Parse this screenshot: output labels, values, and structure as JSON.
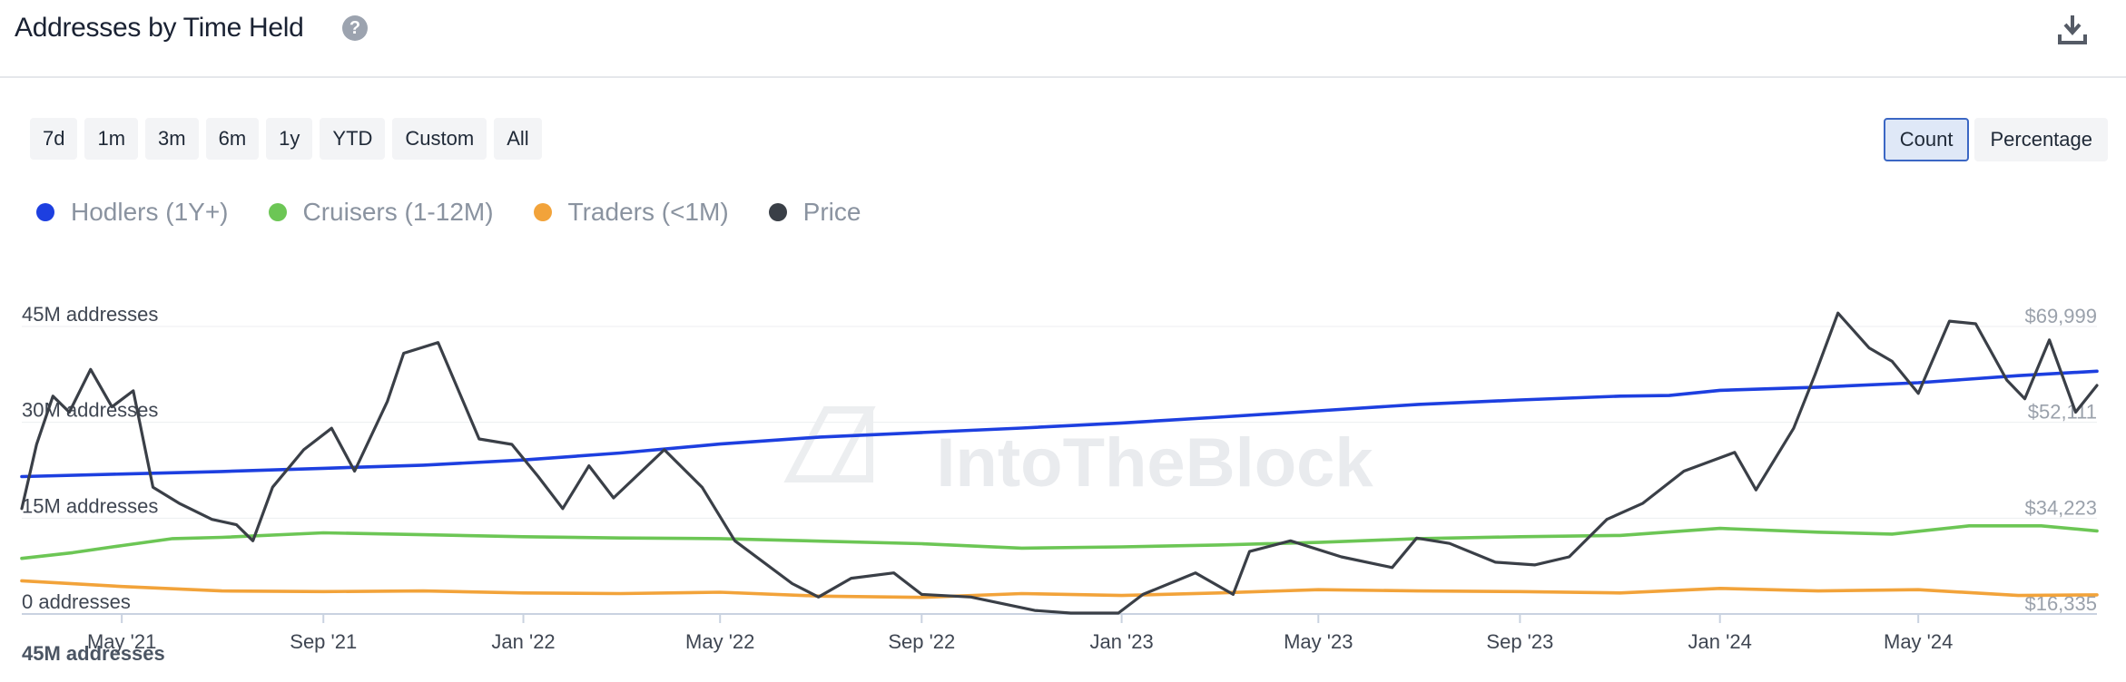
{
  "header": {
    "title": "Addresses by Time Held",
    "help_icon": "question-icon",
    "download_icon": "download-icon"
  },
  "range_buttons": [
    "7d",
    "1m",
    "3m",
    "6m",
    "1y",
    "YTD",
    "Custom",
    "All"
  ],
  "mode_buttons": {
    "count": "Count",
    "percentage": "Percentage",
    "active": "Count"
  },
  "watermark": "IntoTheBlock",
  "footer_label": "45M addresses",
  "colors": {
    "hodlers": "#1d3fe0",
    "cruisers": "#6cc655",
    "traders": "#f2a33a",
    "price": "#3a3f47",
    "grid": "#eceef1",
    "axis": "#c9d2e0"
  },
  "chart_data": {
    "type": "line",
    "x_ticks": [
      "May '21",
      "Sep '21",
      "Jan '22",
      "May '22",
      "Sep '22",
      "Jan '23",
      "May '23",
      "Sep '23",
      "Jan '24",
      "May '24"
    ],
    "x_range": [
      "2021-03-01",
      "2024-08-18"
    ],
    "y_left": {
      "ticks": [
        "0 addresses",
        "15M addresses",
        "30M addresses",
        "45M addresses"
      ],
      "values": [
        0,
        15000000,
        30000000,
        45000000
      ],
      "ylim": [
        0,
        45000000
      ]
    },
    "y_right": {
      "ticks": [
        "$16,335",
        "$34,223",
        "$52,111",
        "$69,999"
      ],
      "values": [
        16335,
        34223,
        52111,
        69999
      ],
      "ylim": [
        16335,
        69999
      ]
    },
    "grid": true,
    "legend_position": "top-left",
    "series": [
      {
        "name": "Hodlers (1Y+)",
        "axis": "left",
        "color": "#1d3fe0",
        "points": [
          [
            "2021-03-01",
            21.5
          ],
          [
            "2021-05-01",
            21.9
          ],
          [
            "2021-07-01",
            22.3
          ],
          [
            "2021-09-01",
            22.8
          ],
          [
            "2021-11-01",
            23.3
          ],
          [
            "2022-01-01",
            24.1
          ],
          [
            "2022-03-01",
            25.2
          ],
          [
            "2022-05-01",
            26.6
          ],
          [
            "2022-07-01",
            27.7
          ],
          [
            "2022-09-01",
            28.4
          ],
          [
            "2022-11-01",
            29.1
          ],
          [
            "2023-01-01",
            29.9
          ],
          [
            "2023-03-01",
            30.8
          ],
          [
            "2023-05-01",
            31.8
          ],
          [
            "2023-07-01",
            32.8
          ],
          [
            "2023-09-01",
            33.5
          ],
          [
            "2023-11-01",
            34.1
          ],
          [
            "2023-12-01",
            34.2
          ],
          [
            "2024-01-01",
            35.0
          ],
          [
            "2024-03-01",
            35.5
          ],
          [
            "2024-05-01",
            36.2
          ],
          [
            "2024-07-01",
            37.3
          ],
          [
            "2024-08-18",
            38.0
          ]
        ]
      },
      {
        "name": "Cruisers (1-12M)",
        "axis": "left",
        "color": "#6cc655",
        "points": [
          [
            "2021-03-01",
            8.7
          ],
          [
            "2021-04-01",
            9.6
          ],
          [
            "2021-05-01",
            10.7
          ],
          [
            "2021-06-01",
            11.8
          ],
          [
            "2021-07-01",
            12.0
          ],
          [
            "2021-09-01",
            12.7
          ],
          [
            "2021-11-01",
            12.4
          ],
          [
            "2022-01-01",
            12.1
          ],
          [
            "2022-03-01",
            11.9
          ],
          [
            "2022-05-01",
            11.8
          ],
          [
            "2022-07-01",
            11.4
          ],
          [
            "2022-09-01",
            11.0
          ],
          [
            "2022-11-01",
            10.3
          ],
          [
            "2023-01-01",
            10.5
          ],
          [
            "2023-03-01",
            10.8
          ],
          [
            "2023-05-01",
            11.2
          ],
          [
            "2023-07-01",
            11.8
          ],
          [
            "2023-09-01",
            12.1
          ],
          [
            "2023-11-01",
            12.3
          ],
          [
            "2024-01-01",
            13.4
          ],
          [
            "2024-03-01",
            12.8
          ],
          [
            "2024-04-15",
            12.5
          ],
          [
            "2024-06-01",
            13.8
          ],
          [
            "2024-07-15",
            13.8
          ],
          [
            "2024-08-18",
            13.0
          ]
        ]
      },
      {
        "name": "Traders (<1M)",
        "axis": "left",
        "color": "#f2a33a",
        "points": [
          [
            "2021-03-01",
            5.2
          ],
          [
            "2021-05-01",
            4.3
          ],
          [
            "2021-07-01",
            3.6
          ],
          [
            "2021-09-01",
            3.5
          ],
          [
            "2021-11-01",
            3.6
          ],
          [
            "2022-01-01",
            3.3
          ],
          [
            "2022-03-01",
            3.2
          ],
          [
            "2022-05-01",
            3.4
          ],
          [
            "2022-07-01",
            2.8
          ],
          [
            "2022-09-01",
            2.6
          ],
          [
            "2022-11-01",
            3.2
          ],
          [
            "2023-01-01",
            2.9
          ],
          [
            "2023-03-01",
            3.3
          ],
          [
            "2023-05-01",
            3.8
          ],
          [
            "2023-07-01",
            3.6
          ],
          [
            "2023-09-01",
            3.5
          ],
          [
            "2023-11-01",
            3.3
          ],
          [
            "2024-01-01",
            4.0
          ],
          [
            "2024-03-01",
            3.6
          ],
          [
            "2024-05-01",
            3.8
          ],
          [
            "2024-07-01",
            2.9
          ],
          [
            "2024-08-18",
            3.0
          ]
        ]
      },
      {
        "name": "Price",
        "axis": "right",
        "color": "#3a3f47",
        "points": [
          [
            "2021-03-01",
            36000
          ],
          [
            "2021-03-10",
            48000
          ],
          [
            "2021-03-20",
            57000
          ],
          [
            "2021-03-30",
            54000
          ],
          [
            "2021-04-12",
            62000
          ],
          [
            "2021-04-25",
            55000
          ],
          [
            "2021-05-08",
            58000
          ],
          [
            "2021-05-20",
            40000
          ],
          [
            "2021-06-05",
            37000
          ],
          [
            "2021-06-25",
            34000
          ],
          [
            "2021-07-10",
            33000
          ],
          [
            "2021-07-20",
            30000
          ],
          [
            "2021-08-01",
            40000
          ],
          [
            "2021-08-20",
            47000
          ],
          [
            "2021-09-06",
            51000
          ],
          [
            "2021-09-20",
            43000
          ],
          [
            "2021-10-10",
            56000
          ],
          [
            "2021-10-20",
            65000
          ],
          [
            "2021-11-10",
            67000
          ],
          [
            "2021-12-05",
            49000
          ],
          [
            "2021-12-25",
            48000
          ],
          [
            "2022-01-10",
            42000
          ],
          [
            "2022-01-25",
            36000
          ],
          [
            "2022-02-10",
            44000
          ],
          [
            "2022-02-25",
            38000
          ],
          [
            "2022-03-28",
            47000
          ],
          [
            "2022-04-20",
            40000
          ],
          [
            "2022-05-10",
            30000
          ],
          [
            "2022-06-14",
            22000
          ],
          [
            "2022-06-30",
            19500
          ],
          [
            "2022-07-20",
            23000
          ],
          [
            "2022-08-15",
            24000
          ],
          [
            "2022-09-01",
            20000
          ],
          [
            "2022-10-01",
            19500
          ],
          [
            "2022-11-09",
            17000
          ],
          [
            "2022-12-01",
            16500
          ],
          [
            "2022-12-30",
            16500
          ],
          [
            "2023-01-14",
            20000
          ],
          [
            "2023-02-15",
            24000
          ],
          [
            "2023-03-10",
            20000
          ],
          [
            "2023-03-20",
            28000
          ],
          [
            "2023-04-14",
            30000
          ],
          [
            "2023-05-15",
            27000
          ],
          [
            "2023-06-15",
            25000
          ],
          [
            "2023-06-30",
            30500
          ],
          [
            "2023-07-20",
            29500
          ],
          [
            "2023-08-17",
            26000
          ],
          [
            "2023-09-10",
            25500
          ],
          [
            "2023-10-01",
            27000
          ],
          [
            "2023-10-24",
            34000
          ],
          [
            "2023-11-15",
            37000
          ],
          [
            "2023-12-10",
            43000
          ],
          [
            "2024-01-10",
            46500
          ],
          [
            "2024-01-23",
            39500
          ],
          [
            "2024-02-15",
            51000
          ],
          [
            "2024-02-28",
            61000
          ],
          [
            "2024-03-13",
            72500
          ],
          [
            "2024-04-01",
            66000
          ],
          [
            "2024-04-15",
            63500
          ],
          [
            "2024-05-01",
            57500
          ],
          [
            "2024-05-20",
            71000
          ],
          [
            "2024-06-05",
            70500
          ],
          [
            "2024-06-24",
            60000
          ],
          [
            "2024-07-05",
            56500
          ],
          [
            "2024-07-20",
            67500
          ],
          [
            "2024-08-05",
            54000
          ],
          [
            "2024-08-18",
            59000
          ]
        ]
      }
    ]
  }
}
